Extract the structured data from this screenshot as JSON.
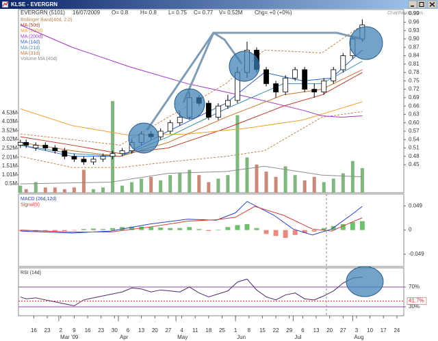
{
  "window": {
    "title": "KLSE - EVERGRN"
  },
  "header": {
    "fields": [
      "EVERGRN (5101)",
      "16/07/2009",
      "O= 0.8",
      "H= 0.8",
      "L= 0.75",
      "C= 0.77",
      "V= 0.52M",
      "Chg= +0 (+0%)"
    ],
    "watermark": "ChartNexus.com"
  },
  "x_axis": {
    "xlim": [
      -8,
      192.6
    ],
    "xticks": [
      {
        "value": 0,
        "label": "16"
      },
      {
        "value": 7,
        "label": "23"
      },
      {
        "value": 14,
        "label": "2"
      },
      {
        "value": 21,
        "label": "9"
      },
      {
        "value": 28,
        "label": "16"
      },
      {
        "value": 35,
        "label": "23"
      },
      {
        "value": 42,
        "label": "30"
      },
      {
        "value": 49,
        "label": "6"
      },
      {
        "value": 56,
        "label": "13"
      },
      {
        "value": 63,
        "label": "20"
      },
      {
        "value": 70,
        "label": "27"
      },
      {
        "value": 77,
        "label": "4"
      },
      {
        "value": 84,
        "label": "11"
      },
      {
        "value": 91,
        "label": "18"
      },
      {
        "value": 98,
        "label": "25"
      },
      {
        "value": 105,
        "label": "1"
      },
      {
        "value": 112,
        "label": "8"
      },
      {
        "value": 119,
        "label": "15"
      },
      {
        "value": 126,
        "label": "22"
      },
      {
        "value": 133,
        "label": "29"
      },
      {
        "value": 140,
        "label": "6"
      },
      {
        "value": 147,
        "label": "13"
      },
      {
        "value": 154,
        "label": "20"
      },
      {
        "value": 161,
        "label": "27"
      },
      {
        "value": 168,
        "label": "3"
      },
      {
        "value": 175,
        "label": "10"
      },
      {
        "value": 182,
        "label": "17"
      },
      {
        "value": 189,
        "label": "24"
      }
    ],
    "months": [
      {
        "value": 13,
        "label": "Mar '09"
      },
      {
        "value": 44,
        "label": "Apr"
      },
      {
        "value": 74,
        "label": "May"
      },
      {
        "value": 105,
        "label": "Jun"
      },
      {
        "value": 135,
        "label": "Jul"
      },
      {
        "value": 166,
        "label": "Aug"
      }
    ]
  },
  "chart_data": [
    {
      "type": "candlestick",
      "x": [
        -7,
        -4,
        1,
        6,
        11,
        16,
        21,
        26,
        31,
        36,
        41,
        46,
        51,
        56,
        61,
        66,
        71,
        76,
        81,
        86,
        91,
        96,
        101,
        106,
        111,
        116,
        121,
        126,
        131,
        136,
        141,
        146,
        151,
        156,
        161,
        166,
        171
      ],
      "open": [
        0.52,
        0.53,
        0.51,
        0.52,
        0.51,
        0.5,
        0.48,
        0.47,
        0.46,
        0.47,
        0.48,
        0.49,
        0.5,
        0.53,
        0.56,
        0.55,
        0.57,
        0.6,
        0.62,
        0.69,
        0.67,
        0.62,
        0.66,
        0.68,
        0.78,
        0.86,
        0.79,
        0.74,
        0.71,
        0.76,
        0.79,
        0.72,
        0.71,
        0.75,
        0.79,
        0.84,
        0.9
      ],
      "high": [
        0.54,
        0.54,
        0.53,
        0.53,
        0.52,
        0.51,
        0.49,
        0.48,
        0.48,
        0.49,
        0.5,
        0.51,
        0.54,
        0.57,
        0.57,
        0.58,
        0.61,
        0.64,
        0.71,
        0.7,
        0.68,
        0.67,
        0.7,
        0.8,
        0.89,
        0.87,
        0.8,
        0.75,
        0.77,
        0.8,
        0.8,
        0.74,
        0.76,
        0.8,
        0.85,
        0.91,
        0.97
      ],
      "low": [
        0.51,
        0.51,
        0.5,
        0.5,
        0.49,
        0.47,
        0.46,
        0.45,
        0.45,
        0.46,
        0.47,
        0.48,
        0.49,
        0.52,
        0.54,
        0.54,
        0.56,
        0.59,
        0.61,
        0.66,
        0.61,
        0.61,
        0.65,
        0.67,
        0.76,
        0.78,
        0.73,
        0.69,
        0.7,
        0.75,
        0.71,
        0.69,
        0.7,
        0.74,
        0.78,
        0.83,
        0.89
      ],
      "close": [
        0.53,
        0.52,
        0.52,
        0.51,
        0.5,
        0.48,
        0.47,
        0.46,
        0.47,
        0.48,
        0.49,
        0.5,
        0.53,
        0.56,
        0.55,
        0.57,
        0.6,
        0.62,
        0.69,
        0.67,
        0.62,
        0.66,
        0.68,
        0.78,
        0.86,
        0.79,
        0.74,
        0.71,
        0.76,
        0.79,
        0.72,
        0.71,
        0.75,
        0.79,
        0.84,
        0.9,
        0.95
      ],
      "up_color": "#ffffff",
      "down_color": "#000000",
      "ylim": [
        0.35,
        1.005
      ],
      "yticks": [
        0.99,
        0.96,
        0.93,
        {
          "value": 0.9,
          "label": "0.90"
        },
        0.87,
        0.84,
        0.81,
        0.78,
        0.75,
        0.72,
        0.69,
        0.66,
        0.63,
        {
          "value": 0.6,
          "label": "0.60"
        },
        0.57,
        0.54,
        0.51,
        0.48,
        0.45
      ],
      "volume": {
        "values": [
          0.4,
          0.2,
          0.6,
          0.3,
          0.3,
          0.2,
          0.3,
          1.3,
          0.2,
          0.3,
          5.2,
          0.4,
          0.6,
          0.8,
          0.9,
          0.7,
          1.0,
          1.1,
          1.3,
          1.0,
          0.6,
          0.8,
          1.0,
          4.4,
          2.0,
          1.6,
          1.2,
          0.9,
          1.5,
          1.0,
          0.7,
          0.9,
          0.6,
          0.8,
          1.1,
          1.8,
          1.4
        ],
        "up_color": "#7fb77f",
        "down_color": "#c98a7a",
        "ylim": [
          0,
          10.39
        ],
        "yticks": [
          {
            "value": 4.53,
            "label": "4.53M"
          },
          {
            "value": 4.03,
            "label": "4.03M"
          },
          {
            "value": 3.52,
            "label": "3.52M"
          },
          {
            "value": 3.02,
            "label": "3.02M"
          },
          {
            "value": 2.52,
            "label": "2.52M"
          },
          {
            "value": 2.01,
            "label": "2.01M"
          },
          {
            "value": 1.51,
            "label": "1.51M"
          },
          {
            "value": 1.01,
            "label": "1.01M"
          },
          {
            "value": 0.5,
            "label": "0.5M"
          }
        ]
      },
      "series": [
        {
          "name": "Bollinger Band(40d, 2.0)",
          "color": "#b8864e",
          "dashed": true,
          "x": [
            -7,
            20,
            45,
            70,
            100,
            120,
            150,
            171
          ],
          "upper": [
            0.56,
            0.54,
            0.52,
            0.62,
            0.74,
            0.86,
            0.85,
            0.95
          ],
          "lower": [
            0.48,
            0.44,
            0.44,
            0.46,
            0.48,
            0.5,
            0.62,
            0.64
          ]
        },
        {
          "name": "MA (50d)",
          "color": "#c0392b",
          "x": [
            -7,
            20,
            45,
            70,
            100,
            130,
            150,
            171
          ],
          "values": [
            0.55,
            0.52,
            0.49,
            0.51,
            0.58,
            0.66,
            0.7,
            0.78
          ]
        },
        {
          "name": "MA (100d)",
          "color": "#f0a030",
          "x": [
            -7,
            20,
            50,
            80,
            110,
            140,
            171
          ],
          "values": [
            0.65,
            0.59,
            0.555,
            0.56,
            0.58,
            0.61,
            0.675
          ]
        },
        {
          "name": "MA (200d)",
          "color": "#a335c8",
          "x": [
            -7,
            20,
            50,
            80,
            110,
            140,
            150,
            160,
            171
          ],
          "values": [
            0.95,
            0.87,
            0.8,
            0.74,
            0.695,
            0.645,
            0.625,
            0.62,
            0.625
          ]
        },
        {
          "name": "MA (14d)",
          "color": "#2f5fc8",
          "x": [
            -7,
            20,
            45,
            70,
            100,
            120,
            140,
            155,
            171
          ],
          "values": [
            0.52,
            0.48,
            0.48,
            0.57,
            0.67,
            0.78,
            0.75,
            0.76,
            0.86
          ]
        },
        {
          "name": "MA (21d)",
          "color": "#3a8fb0",
          "x": [
            -7,
            20,
            45,
            70,
            100,
            130,
            150,
            171
          ],
          "values": [
            0.52,
            0.49,
            0.48,
            0.55,
            0.65,
            0.74,
            0.74,
            0.82
          ]
        },
        {
          "name": "MA (31d)",
          "color": "#c8702a",
          "x": [
            -7,
            20,
            45,
            70,
            100,
            130,
            150,
            171
          ],
          "values": [
            0.53,
            0.5,
            0.48,
            0.53,
            0.62,
            0.7,
            0.72,
            0.79
          ]
        },
        {
          "name": "Volume MA (40d)",
          "color": "#8c8c8c",
          "axis": "volume",
          "x": [
            -7,
            40,
            70,
            100,
            120,
            150,
            171
          ],
          "values": [
            0.5,
            0.6,
            1.1,
            1.2,
            1.5,
            1.0,
            0.9
          ]
        }
      ]
    },
    {
      "type": "macd",
      "ylim": [
        -0.074,
        0.073
      ],
      "yticks": [
        0.049,
        0,
        -0.049
      ],
      "series": [
        {
          "name": "MACD (26d,12d)",
          "color": "#2a3fc0",
          "x": [
            -7,
            20,
            40,
            60,
            80,
            95,
            105,
            111,
            125,
            135,
            145,
            155,
            165,
            171
          ],
          "values": [
            -0.002,
            -0.006,
            -0.002,
            0.012,
            0.022,
            0.02,
            0.035,
            0.058,
            0.03,
            0.002,
            -0.01,
            0.002,
            0.03,
            0.048
          ]
        },
        {
          "name": "Signal(9)",
          "color": "#d03a3a",
          "x": [
            -7,
            20,
            40,
            60,
            80,
            95,
            105,
            115,
            130,
            145,
            155,
            165,
            171
          ],
          "values": [
            0,
            -0.004,
            -0.004,
            0.006,
            0.018,
            0.021,
            0.026,
            0.048,
            0.03,
            0.002,
            -0.002,
            0.015,
            0.025
          ]
        }
      ],
      "histogram": {
        "up_color": "#6fbf6f",
        "down_color": "#e88a80",
        "values": [
          -0.002,
          -0.002,
          -0.003,
          -0.002,
          -0.002,
          -0.002,
          -0.001,
          0.002,
          0.003,
          0.002,
          0.004,
          0.006,
          0.007,
          0.007,
          0.006,
          0.005,
          0.004,
          0.004,
          0.006,
          0.002,
          -0.002,
          0.001,
          0.006,
          0.01,
          0.012,
          0.004,
          -0.008,
          -0.012,
          -0.016,
          -0.01,
          -0.006,
          -0.003,
          0.004,
          0.008,
          0.012,
          0.016,
          0.018
        ]
      }
    },
    {
      "type": "line",
      "ylim": [
        12,
        108.6
      ],
      "yticks": [
        {
          "value": 70,
          "label": "70%"
        },
        {
          "value": 30,
          "label": "30%"
        }
      ],
      "level_color": "#8a4aa8",
      "marker": {
        "value": 41.7,
        "label": "41.7%",
        "color": "#d03030"
      },
      "series": [
        {
          "name": "RSI (14d)",
          "color": "#4a2a6a",
          "values": [
            50,
            46,
            48,
            44,
            40,
            36,
            32,
            44,
            48,
            52,
            56,
            60,
            68,
            66,
            60,
            64,
            62,
            60,
            70,
            58,
            50,
            56,
            62,
            80,
            86,
            64,
            50,
            44,
            54,
            58,
            46,
            44,
            52,
            62,
            78,
            88,
            90
          ]
        }
      ]
    }
  ]
}
